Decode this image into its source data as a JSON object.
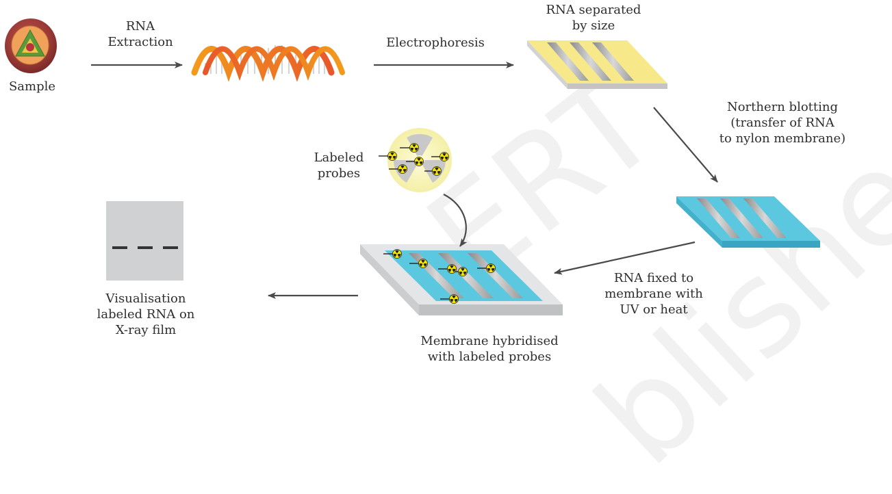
{
  "labels": {
    "sample": "Sample",
    "rna_extraction": [
      "RNA",
      "Extraction"
    ],
    "electrophoresis": "Electrophoresis",
    "rna_separated": [
      "RNA separated",
      "by size"
    ],
    "northern_blotting": [
      "Northern blotting",
      "(transfer of RNA",
      "to nylon membrane)"
    ],
    "labeled_probes": [
      "Labeled",
      "probes"
    ],
    "rna_fixed": [
      "RNA fixed to",
      "membrane with",
      "UV or heat"
    ],
    "membrane_hybridised": [
      "Membrane hybridised",
      "with labeled probes"
    ],
    "visualisation": [
      "Visualisation",
      "labeled RNA on",
      "X-ray film"
    ]
  },
  "watermark": [
    "ERT",
    "blished"
  ],
  "colors": {
    "arrow": "#4a4a4a",
    "gel_yellow": "#f7e98a",
    "membrane_blue": "#5cc8e0",
    "probe_yellow": "#f5e500",
    "xray_film": "#d0d1d3",
    "watermark": "#f0f0f0"
  },
  "icons": [
    "sample-cell-icon",
    "rna-helix-icon",
    "radioactive-probe-icon"
  ]
}
